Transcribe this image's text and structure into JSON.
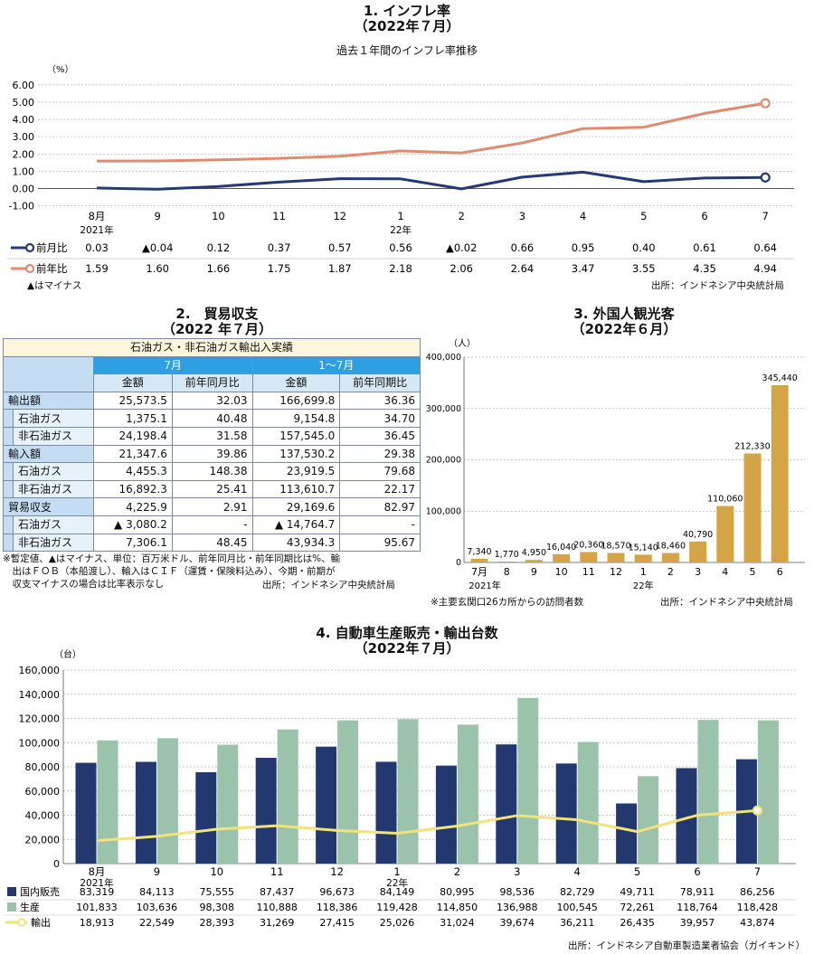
{
  "inflation": {
    "title": "1. インフレ率",
    "subtitle": "（2022年７月）",
    "caption": "過去１年間のインフレ率推移",
    "unit": "（%）",
    "y_ticks": [
      "6.00",
      "5.00",
      "4.00",
      "3.00",
      "2.00",
      "1.00",
      "0.00",
      "-1.00"
    ],
    "months": [
      "8月",
      "9",
      "10",
      "11",
      "12",
      "1",
      "2",
      "3",
      "4",
      "5",
      "6",
      "7"
    ],
    "year_labels": [
      "2021年",
      "",
      "",
      "",
      "",
      "22年",
      "",
      "",
      "",
      "",
      "",
      ""
    ],
    "rows": [
      {
        "name": "前月比",
        "color": "#243a78",
        "cells": [
          "0.03",
          "▲0.04",
          "0.12",
          "0.37",
          "0.57",
          "0.56",
          "▲0.02",
          "0.66",
          "0.95",
          "0.40",
          "0.61",
          "0.64"
        ]
      },
      {
        "name": "前年比",
        "color": "#e08a70",
        "cells": [
          "1.59",
          "1.60",
          "1.66",
          "1.75",
          "1.87",
          "2.18",
          "2.06",
          "2.64",
          "3.47",
          "3.55",
          "4.35",
          "4.94"
        ]
      }
    ],
    "note": "▲はマイナス",
    "source": "出所：インドネシア中央統計局"
  },
  "trade": {
    "title": "2.　貿易収支",
    "subtitle": "（2022 年７月）",
    "caption": "石油ガス・非石油ガス輸出入実績",
    "group_headers": [
      "7月",
      "1～7月"
    ],
    "col_headers": [
      "金額",
      "前年同月比",
      "金額",
      "前年同期比"
    ],
    "rows": [
      {
        "label": "輸出額",
        "level": 0,
        "cells": [
          "25,573.5",
          "32.03",
          "166,699.8",
          "36.36"
        ]
      },
      {
        "label": "石油ガス",
        "level": 1,
        "cells": [
          "1,375.1",
          "40.48",
          "9,154.8",
          "34.70"
        ]
      },
      {
        "label": "非石油ガス",
        "level": 1,
        "cells": [
          "24,198.4",
          "31.58",
          "157,545.0",
          "36.45"
        ]
      },
      {
        "label": "輸入額",
        "level": 0,
        "cells": [
          "21,347.6",
          "39.86",
          "137,530.2",
          "29.38"
        ]
      },
      {
        "label": "石油ガス",
        "level": 1,
        "cells": [
          "4,455.3",
          "148.38",
          "23,919.5",
          "79.68"
        ]
      },
      {
        "label": "非石油ガス",
        "level": 1,
        "cells": [
          "16,892.3",
          "25.41",
          "113,610.7",
          "22.17"
        ]
      },
      {
        "label": "貿易収支",
        "level": 0,
        "cells": [
          "4,225.9",
          "2.91",
          "29,169.6",
          "82.97"
        ]
      },
      {
        "label": "石油ガス",
        "level": 1,
        "cells": [
          "▲ 3,080.2",
          "-",
          "▲ 14,764.7",
          "-"
        ]
      },
      {
        "label": "非石油ガス",
        "level": 1,
        "cells": [
          "7,306.1",
          "48.45",
          "43,934.3",
          "95.67"
        ]
      }
    ],
    "note_lines": [
      "※暫定値、▲はマイナス、単位：百万米ドル、前年同月比・前年同期比は%、輸",
      "　出はＦＯＢ（本船渡し）、輸入はＣＩＦ（運賃・保険料込み）、今期・前期が",
      "　収支マイナスの場合は比率表示なし"
    ],
    "source": "出所：インドネシア中央統計局"
  },
  "tourists": {
    "title": "3. 外国人観光客",
    "subtitle": "（2022年６月）",
    "unit": "（人）",
    "y_ticks": [
      "400,000",
      "300,000",
      "200,000",
      "100,000",
      "0"
    ],
    "months": [
      "7月",
      "8",
      "9",
      "10",
      "11",
      "12",
      "1",
      "2",
      "3",
      "4",
      "5",
      "6"
    ],
    "year_labels": [
      "2021年",
      "",
      "",
      "",
      "",
      "",
      "22年",
      "",
      "",
      "",
      "",
      ""
    ],
    "value_labels": [
      "7,340",
      "1,770",
      "4,950",
      "16,040",
      "20,360",
      "18,570",
      "15,140",
      "18,460",
      "40,790",
      "110,060",
      "212,330",
      "345,440"
    ],
    "bar_color": "#d4a546",
    "note": "※主要玄関口26カ所からの訪問者数",
    "source": "出所：インドネシア中央統計局"
  },
  "auto": {
    "title": "4. 自動車生産販売・輸出台数",
    "subtitle": "（2022年７月）",
    "unit": "（台）",
    "y_ticks": [
      "160,000",
      "140,000",
      "120,000",
      "100,000",
      "80,000",
      "60,000",
      "40,000",
      "20,000",
      "0"
    ],
    "months": [
      "8月",
      "9",
      "10",
      "11",
      "12",
      "1",
      "2",
      "3",
      "4",
      "5",
      "6",
      "7"
    ],
    "year_labels": [
      "2021年",
      "",
      "",
      "",
      "",
      "22年",
      "",
      "",
      "",
      "",
      "",
      ""
    ],
    "rows": [
      {
        "name": "国内販売",
        "color": "#22386f",
        "cells": [
          "83,319",
          "84,113",
          "75,555",
          "87,437",
          "96,673",
          "84,149",
          "80,995",
          "98,536",
          "82,729",
          "49,711",
          "78,911",
          "86,256"
        ]
      },
      {
        "name": "生産",
        "color": "#9bc3ab",
        "cells": [
          "101,833",
          "103,636",
          "98,308",
          "110,888",
          "118,386",
          "119,428",
          "114,850",
          "136,988",
          "100,545",
          "72,261",
          "118,764",
          "118,428"
        ]
      },
      {
        "name": "輸出",
        "color": "#f2e27a",
        "cells": [
          "18,913",
          "22,549",
          "28,393",
          "31,269",
          "27,415",
          "25,026",
          "31,024",
          "39,674",
          "36,211",
          "26,435",
          "39,957",
          "43,874"
        ]
      }
    ],
    "source": "出所：インドネシア自動車製造業者協会（ガイキンド）"
  },
  "chart_data": [
    {
      "type": "line",
      "title": "1. インフレ率",
      "ylabel": "%",
      "categories": [
        "2021-08",
        "2021-09",
        "2021-10",
        "2021-11",
        "2021-12",
        "2022-01",
        "2022-02",
        "2022-03",
        "2022-04",
        "2022-05",
        "2022-06",
        "2022-07"
      ],
      "ylim": [
        -1,
        6
      ],
      "grid": true,
      "series": [
        {
          "name": "前月比",
          "values": [
            0.03,
            -0.04,
            0.12,
            0.37,
            0.57,
            0.56,
            -0.02,
            0.66,
            0.95,
            0.4,
            0.61,
            0.64
          ]
        },
        {
          "name": "前年比",
          "values": [
            1.59,
            1.6,
            1.66,
            1.75,
            1.87,
            2.18,
            2.06,
            2.64,
            3.47,
            3.55,
            4.35,
            4.94
          ]
        }
      ]
    },
    {
      "type": "bar",
      "title": "3. 外国人観光客",
      "ylabel": "人",
      "categories": [
        "2021-07",
        "2021-08",
        "2021-09",
        "2021-10",
        "2021-11",
        "2021-12",
        "2022-01",
        "2022-02",
        "2022-03",
        "2022-04",
        "2022-05",
        "2022-06"
      ],
      "values": [
        7340,
        1770,
        4950,
        16040,
        20360,
        18570,
        15140,
        18460,
        40790,
        110060,
        212330,
        345440
      ],
      "ylim": [
        0,
        400000
      ],
      "grid": true
    },
    {
      "type": "bar",
      "title": "4. 自動車生産販売・輸出台数",
      "ylabel": "台",
      "categories": [
        "2021-08",
        "2021-09",
        "2021-10",
        "2021-11",
        "2021-12",
        "2022-01",
        "2022-02",
        "2022-03",
        "2022-04",
        "2022-05",
        "2022-06",
        "2022-07"
      ],
      "ylim": [
        0,
        160000
      ],
      "grid": true,
      "series": [
        {
          "name": "国内販売",
          "type": "bar",
          "values": [
            83319,
            84113,
            75555,
            87437,
            96673,
            84149,
            80995,
            98536,
            82729,
            49711,
            78911,
            86256
          ]
        },
        {
          "name": "生産",
          "type": "bar",
          "values": [
            101833,
            103636,
            98308,
            110888,
            118386,
            119428,
            114850,
            136988,
            100545,
            72261,
            118764,
            118428
          ]
        },
        {
          "name": "輸出",
          "type": "line",
          "values": [
            18913,
            22549,
            28393,
            31269,
            27415,
            25026,
            31024,
            39674,
            36211,
            26435,
            39957,
            43874
          ]
        }
      ]
    }
  ]
}
